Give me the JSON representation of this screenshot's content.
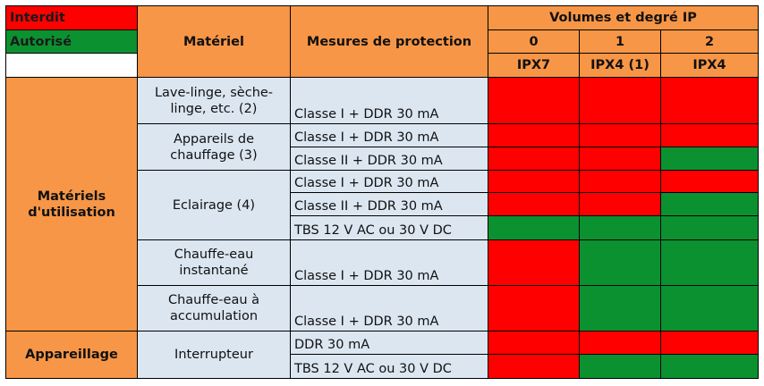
{
  "legend": {
    "interdit": {
      "label": "Interdit",
      "color": "#ff0000"
    },
    "autorise": {
      "label": "Autorisé",
      "color": "#0c9130"
    }
  },
  "header": {
    "materiel": "Matériel",
    "mesures": "Mesures de protection",
    "volumes": "Volumes et degré IP",
    "volume_numbers": [
      "0",
      "1",
      "2"
    ],
    "ip_ratings": [
      "IPX7",
      "IPX4 (1)",
      "IPX4"
    ]
  },
  "categories": {
    "utilisation": "Matériels d'utilisation",
    "appareillage": "Appareillage"
  },
  "equipment": {
    "lave_linge": "Lave-linge, sèche-linge, etc. (2)",
    "chauffage": "Appareils de chauffage (3)",
    "eclairage": "Eclairage (4)",
    "chauffe_eau_instantane": "Chauffe-eau instantané",
    "chauffe_eau_accumulation": "Chauffe-eau à accumulation",
    "interrupteur": "Interrupteur"
  },
  "protection": {
    "classe1_ddr": "Classe I + DDR 30 mA",
    "classe2_ddr": "Classe II + DDR 30 mA",
    "tbs": "TBS 12 V AC ou 30 V DC",
    "ddr": "DDR 30 mA"
  },
  "rows": [
    {
      "status": [
        "interdit",
        "interdit",
        "interdit"
      ]
    },
    {
      "status": [
        "interdit",
        "interdit",
        "interdit"
      ]
    },
    {
      "status": [
        "interdit",
        "interdit",
        "autorise"
      ]
    },
    {
      "status": [
        "interdit",
        "interdit",
        "interdit"
      ]
    },
    {
      "status": [
        "interdit",
        "interdit",
        "autorise"
      ]
    },
    {
      "status": [
        "autorise",
        "autorise",
        "autorise"
      ]
    },
    {
      "status": [
        "interdit",
        "autorise",
        "autorise"
      ]
    },
    {
      "status": [
        "interdit",
        "autorise",
        "autorise"
      ]
    },
    {
      "status": [
        "interdit",
        "interdit",
        "interdit"
      ]
    },
    {
      "status": [
        "interdit",
        "autorise",
        "autorise"
      ]
    }
  ]
}
